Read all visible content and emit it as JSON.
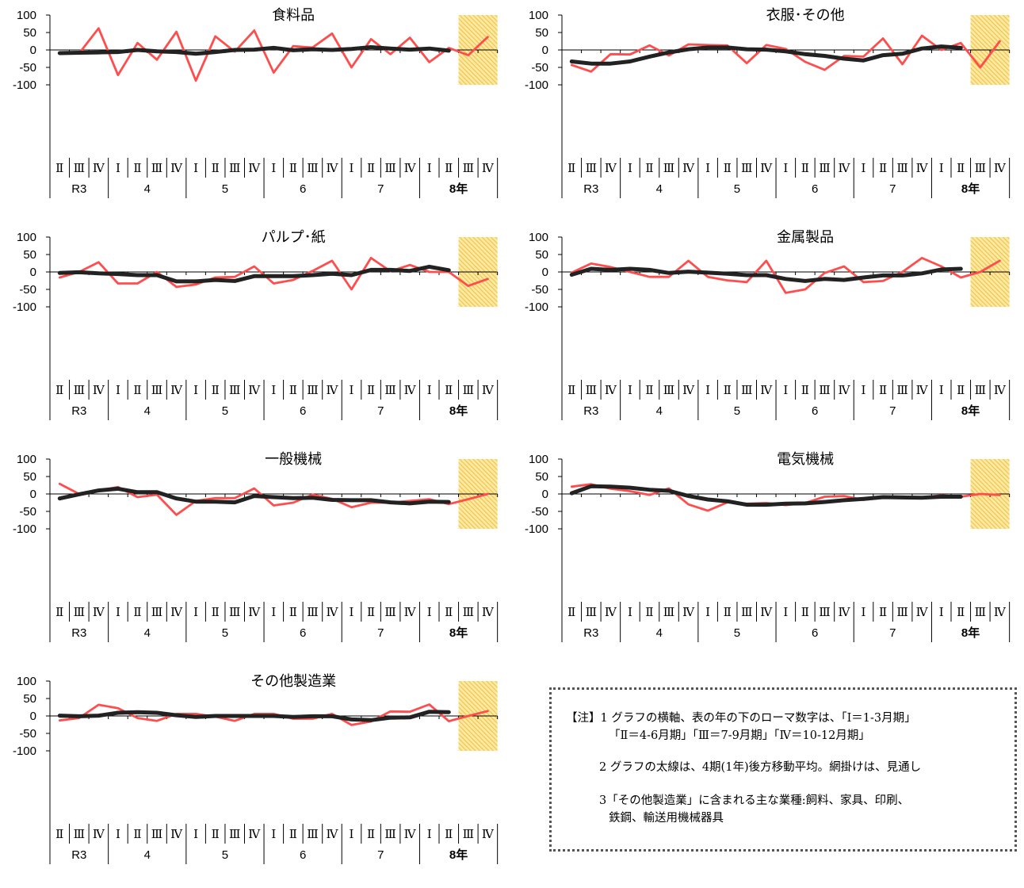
{
  "y_ticks": [
    "100",
    "50",
    "0",
    "-50",
    "-100"
  ],
  "quarter_labels": [
    "Ⅱ",
    "Ⅲ",
    "Ⅳ",
    "Ⅰ",
    "Ⅱ",
    "Ⅲ",
    "Ⅳ",
    "Ⅰ",
    "Ⅱ",
    "Ⅲ",
    "Ⅳ",
    "Ⅰ",
    "Ⅱ",
    "Ⅲ",
    "Ⅳ",
    "Ⅰ",
    "Ⅱ",
    "Ⅲ",
    "Ⅳ",
    "Ⅰ",
    "Ⅱ",
    "Ⅲ",
    "Ⅳ"
  ],
  "year_labels": [
    "R3",
    "4",
    "5",
    "6",
    "7",
    "8年"
  ],
  "colors": {
    "quarterly": "#ff4d4d",
    "moving_average": "#222222",
    "forecast_hatch": "#f3c23a"
  },
  "notes": {
    "line1": "【注】1 グラフの横軸、表の年の下のローマ数字は、「Ⅰ＝1-3月期」",
    "line2": "「Ⅱ＝4-6月期」「Ⅲ＝7-9月期」「Ⅳ＝10-12月期」",
    "line3": "2 グラフの太線は、4期(1年)後方移動平均。網掛けは、見通し",
    "line4": "3「その他製造業」に含まれる主な業種:飼料、家具、印刷、",
    "line5": "鉄鋼、輸送用機械器具"
  },
  "chart_data": [
    {
      "type": "line",
      "title": "食料品",
      "ylim": [
        -100,
        100
      ],
      "forecast_periods": 2,
      "series": [
        {
          "role": "quarterly",
          "values": [
            -8,
            -10,
            62,
            -72,
            20,
            -28,
            52,
            -88,
            39,
            -5,
            56,
            -65,
            11,
            7,
            47,
            -50,
            31,
            -12,
            35,
            -35,
            6,
            -15,
            37
          ]
        },
        {
          "role": "moving_average",
          "values": [
            -9,
            -8,
            -7,
            -6,
            0,
            -4,
            -6,
            -11,
            -6,
            0,
            1,
            6,
            -1,
            2,
            0,
            3,
            8,
            4,
            1,
            4,
            -2,
            null,
            null
          ]
        }
      ]
    },
    {
      "type": "line",
      "title": "衣服･その他",
      "ylim": [
        -100,
        100
      ],
      "forecast_periods": 2,
      "series": [
        {
          "role": "quarterly",
          "values": [
            -43,
            -62,
            -12,
            -13,
            13,
            -16,
            16,
            14,
            13,
            -38,
            14,
            3,
            -34,
            -57,
            -17,
            -19,
            33,
            -41,
            41,
            0,
            20,
            -50,
            25
          ]
        },
        {
          "role": "moving_average",
          "values": [
            -33,
            -39,
            -39,
            -33,
            -19,
            -7,
            2,
            7,
            7,
            2,
            1,
            -4,
            -12,
            -17,
            -25,
            -30,
            -15,
            -11,
            4,
            10,
            6,
            null,
            null
          ]
        }
      ]
    },
    {
      "type": "line",
      "title": "パルプ･紙",
      "ylim": [
        -100,
        100
      ],
      "forecast_periods": 2,
      "series": [
        {
          "role": "quarterly",
          "values": [
            -16,
            0,
            28,
            -33,
            -33,
            0,
            -43,
            -36,
            -16,
            -14,
            16,
            -33,
            -23,
            3,
            32,
            -50,
            40,
            2,
            20,
            0,
            0,
            -40,
            -20
          ]
        },
        {
          "role": "moving_average",
          "values": [
            -3,
            -1,
            -4,
            -6,
            -9,
            -9,
            -27,
            -27,
            -23,
            -26,
            -12,
            -12,
            -12,
            -9,
            -5,
            -9,
            6,
            6,
            3,
            15,
            5,
            null,
            null
          ]
        }
      ]
    },
    {
      "type": "line",
      "title": "金属製品",
      "ylim": [
        -100,
        100
      ],
      "forecast_periods": 2,
      "series": [
        {
          "role": "quarterly",
          "values": [
            -2,
            24,
            14,
            0,
            -14,
            -14,
            32,
            -14,
            -24,
            -29,
            32,
            -60,
            -50,
            -3,
            16,
            -29,
            -26,
            0,
            40,
            16,
            -16,
            0,
            32
          ]
        },
        {
          "role": "moving_average",
          "values": [
            -8,
            9,
            6,
            9,
            6,
            -3,
            1,
            -2,
            -5,
            -9,
            -9,
            -20,
            -26,
            -20,
            -23,
            -16,
            -10,
            -10,
            -4,
            7,
            9,
            null,
            null
          ]
        }
      ]
    },
    {
      "type": "line",
      "title": "一般機械",
      "ylim": [
        -100,
        100
      ],
      "forecast_periods": 2,
      "series": [
        {
          "role": "quarterly",
          "values": [
            29,
            0,
            10,
            20,
            -9,
            -2,
            -60,
            -20,
            -12,
            -12,
            16,
            -33,
            -25,
            -2,
            -14,
            -38,
            -25,
            -25,
            -20,
            -15,
            -29,
            -15,
            0
          ]
        },
        {
          "role": "moving_average",
          "values": [
            -13,
            -1,
            10,
            15,
            5,
            5,
            -13,
            -22,
            -22,
            -24,
            -6,
            -9,
            -12,
            -11,
            -17,
            -18,
            -18,
            -24,
            -27,
            -22,
            -23,
            null,
            null
          ]
        }
      ]
    },
    {
      "type": "line",
      "title": "電気機械",
      "ylim": [
        -100,
        100
      ],
      "forecast_periods": 2,
      "series": [
        {
          "role": "quarterly",
          "values": [
            21,
            28,
            15,
            8,
            -3,
            16,
            -30,
            -48,
            -24,
            -28,
            -26,
            -32,
            -26,
            -8,
            -6,
            -17,
            -11,
            -12,
            -10,
            -4,
            -8,
            0,
            -3
          ]
        },
        {
          "role": "moving_average",
          "values": [
            2,
            22,
            21,
            18,
            12,
            9,
            -6,
            -16,
            -21,
            -31,
            -31,
            -28,
            -27,
            -23,
            -18,
            -14,
            -9,
            -10,
            -11,
            -8,
            -8,
            null,
            null
          ]
        }
      ]
    },
    {
      "type": "line",
      "title": "その他製造業",
      "ylim": [
        -100,
        100
      ],
      "forecast_periods": 2,
      "series": [
        {
          "role": "quarterly",
          "values": [
            -13,
            -6,
            32,
            22,
            -6,
            -14,
            6,
            6,
            -2,
            -14,
            6,
            6,
            -8,
            -8,
            6,
            -26,
            -16,
            13,
            12,
            33,
            -15,
            0,
            14
          ]
        },
        {
          "role": "moving_average",
          "values": [
            1,
            -1,
            1,
            9,
            11,
            9,
            2,
            -3,
            0,
            0,
            0,
            0,
            -3,
            -1,
            -1,
            -10,
            -12,
            -5,
            -4,
            12,
            11,
            null,
            null
          ]
        }
      ]
    }
  ]
}
